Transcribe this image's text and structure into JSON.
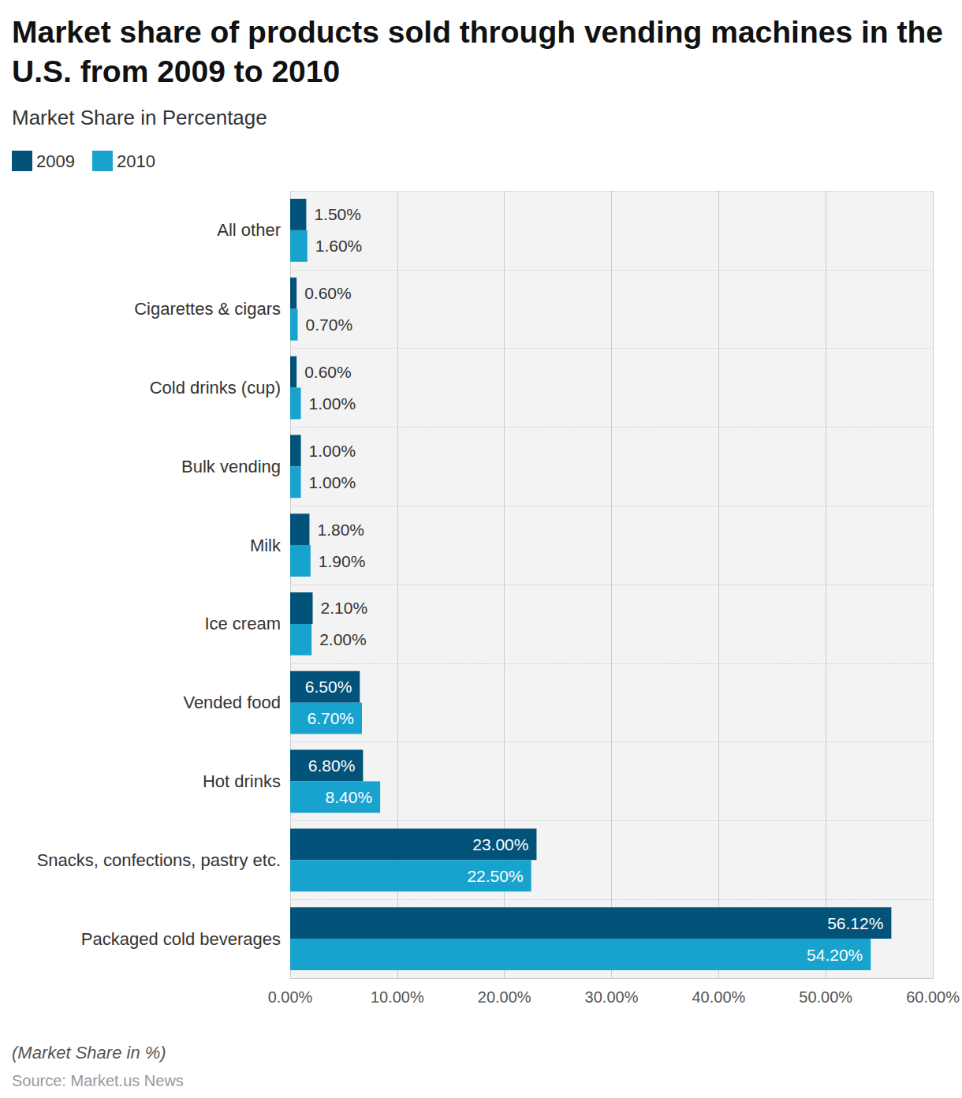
{
  "chart_data": {
    "type": "bar",
    "orientation": "horizontal",
    "title": "Market share of products sold through vending machines in the U.S. from 2009 to 2010",
    "subtitle": "Market Share in Percentage",
    "footnote": "(Market Share in %)",
    "source": "Source: Market.us News",
    "legend": "top-left",
    "grid": true,
    "data_labels": true,
    "categories": [
      "All other",
      "Cigarettes & cigars",
      "Cold drinks (cup)",
      "Bulk vending",
      "Milk",
      "Ice cream",
      "Vended food",
      "Hot drinks",
      "Snacks, confections, pastry etc.",
      "Packaged cold beverages"
    ],
    "series": [
      {
        "name": "2009",
        "color": "#03527a",
        "values": [
          1.5,
          0.6,
          0.6,
          1.0,
          1.8,
          2.1,
          6.5,
          6.8,
          23.0,
          56.12
        ],
        "value_labels": [
          "1.50%",
          "0.60%",
          "0.60%",
          "1.00%",
          "1.80%",
          "2.10%",
          "6.50%",
          "6.80%",
          "23.00%",
          "56.12%"
        ]
      },
      {
        "name": "2010",
        "color": "#18a3cf",
        "values": [
          1.6,
          0.7,
          1.0,
          1.0,
          1.9,
          2.0,
          6.7,
          8.4,
          22.5,
          54.2
        ],
        "value_labels": [
          "1.60%",
          "0.70%",
          "1.00%",
          "1.00%",
          "1.90%",
          "2.00%",
          "6.70%",
          "8.40%",
          "22.50%",
          "54.20%"
        ]
      }
    ],
    "xlim": [
      0,
      60
    ],
    "xticks": [
      {
        "value": 0,
        "label": "0.00%"
      },
      {
        "value": 10,
        "label": "10.00%"
      },
      {
        "value": 20,
        "label": "20.00%"
      },
      {
        "value": 30,
        "label": "30.00%"
      },
      {
        "value": 40,
        "label": "40.00%"
      },
      {
        "value": 50,
        "label": "50.00%"
      },
      {
        "value": 60,
        "label": "60.00%"
      }
    ]
  }
}
